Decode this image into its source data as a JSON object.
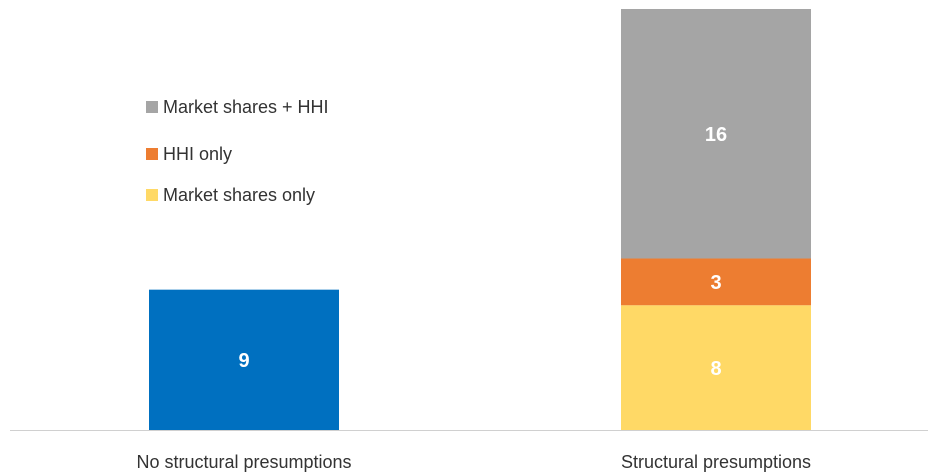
{
  "chart_data": {
    "type": "stacked_bar",
    "categories": [
      "No structural presumptions",
      "Structural presumptions"
    ],
    "series": [
      {
        "color": "#0070c0",
        "values": [
          9,
          null
        ]
      },
      {
        "name": "Market shares only",
        "color": "#ffd966",
        "values": [
          null,
          8
        ]
      },
      {
        "name": "HHI only",
        "color": "#ed7d31",
        "values": [
          null,
          3
        ]
      },
      {
        "name": "Market shares + HHI",
        "color": "#a5a5a5",
        "values": [
          null,
          16
        ]
      }
    ]
  }
}
